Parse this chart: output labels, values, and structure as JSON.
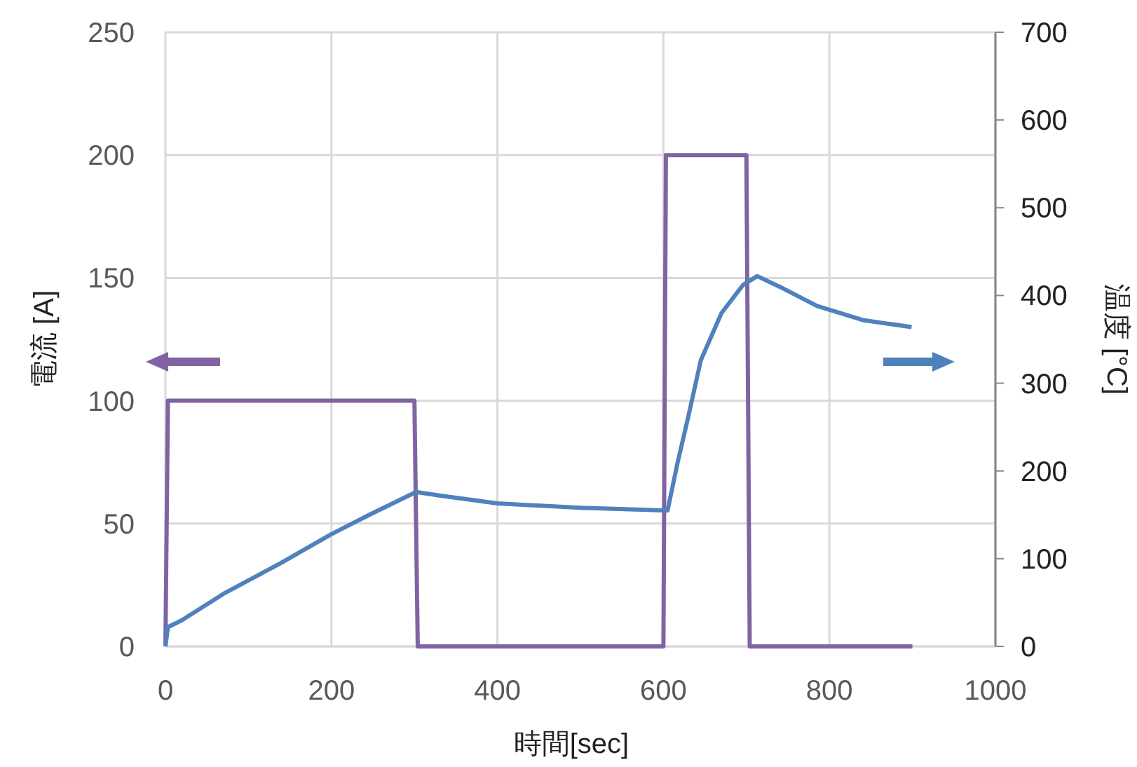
{
  "chart_data": {
    "type": "line",
    "xlabel": "時間[sec]",
    "ylabel": "電流 [A]",
    "y2label": "温度 [°C]",
    "xlim": [
      0,
      1000
    ],
    "xticks": [
      0,
      200,
      400,
      600,
      800,
      1000
    ],
    "ylim": [
      0,
      250
    ],
    "yticks": [
      0,
      50,
      100,
      150,
      200,
      250
    ],
    "y2lim": [
      0,
      700
    ],
    "y2ticks": [
      0,
      100,
      200,
      300,
      400,
      500,
      600,
      700
    ],
    "grid": true,
    "series": [
      {
        "color": "#8064a2",
        "x": [
          0,
          3,
          300,
          304,
          600,
          603,
          700,
          704,
          900
        ],
        "values": [
          0,
          100,
          100,
          0,
          0,
          200,
          200,
          0,
          0
        ]
      },
      {
        "color": "#4f81bd",
        "axis": "y2",
        "x": [
          0,
          3,
          20,
          70,
          139,
          200,
          250,
          302,
          330,
          400,
          500,
          600,
          605,
          617,
          630,
          645,
          670,
          696,
          713,
          740,
          785,
          840,
          899
        ],
        "values": [
          0,
          22,
          30,
          60,
          95,
          128,
          152,
          176,
          172,
          163,
          158,
          155,
          155,
          209,
          262,
          326,
          380,
          412,
          422,
          410,
          388,
          372,
          364
        ]
      }
    ]
  }
}
